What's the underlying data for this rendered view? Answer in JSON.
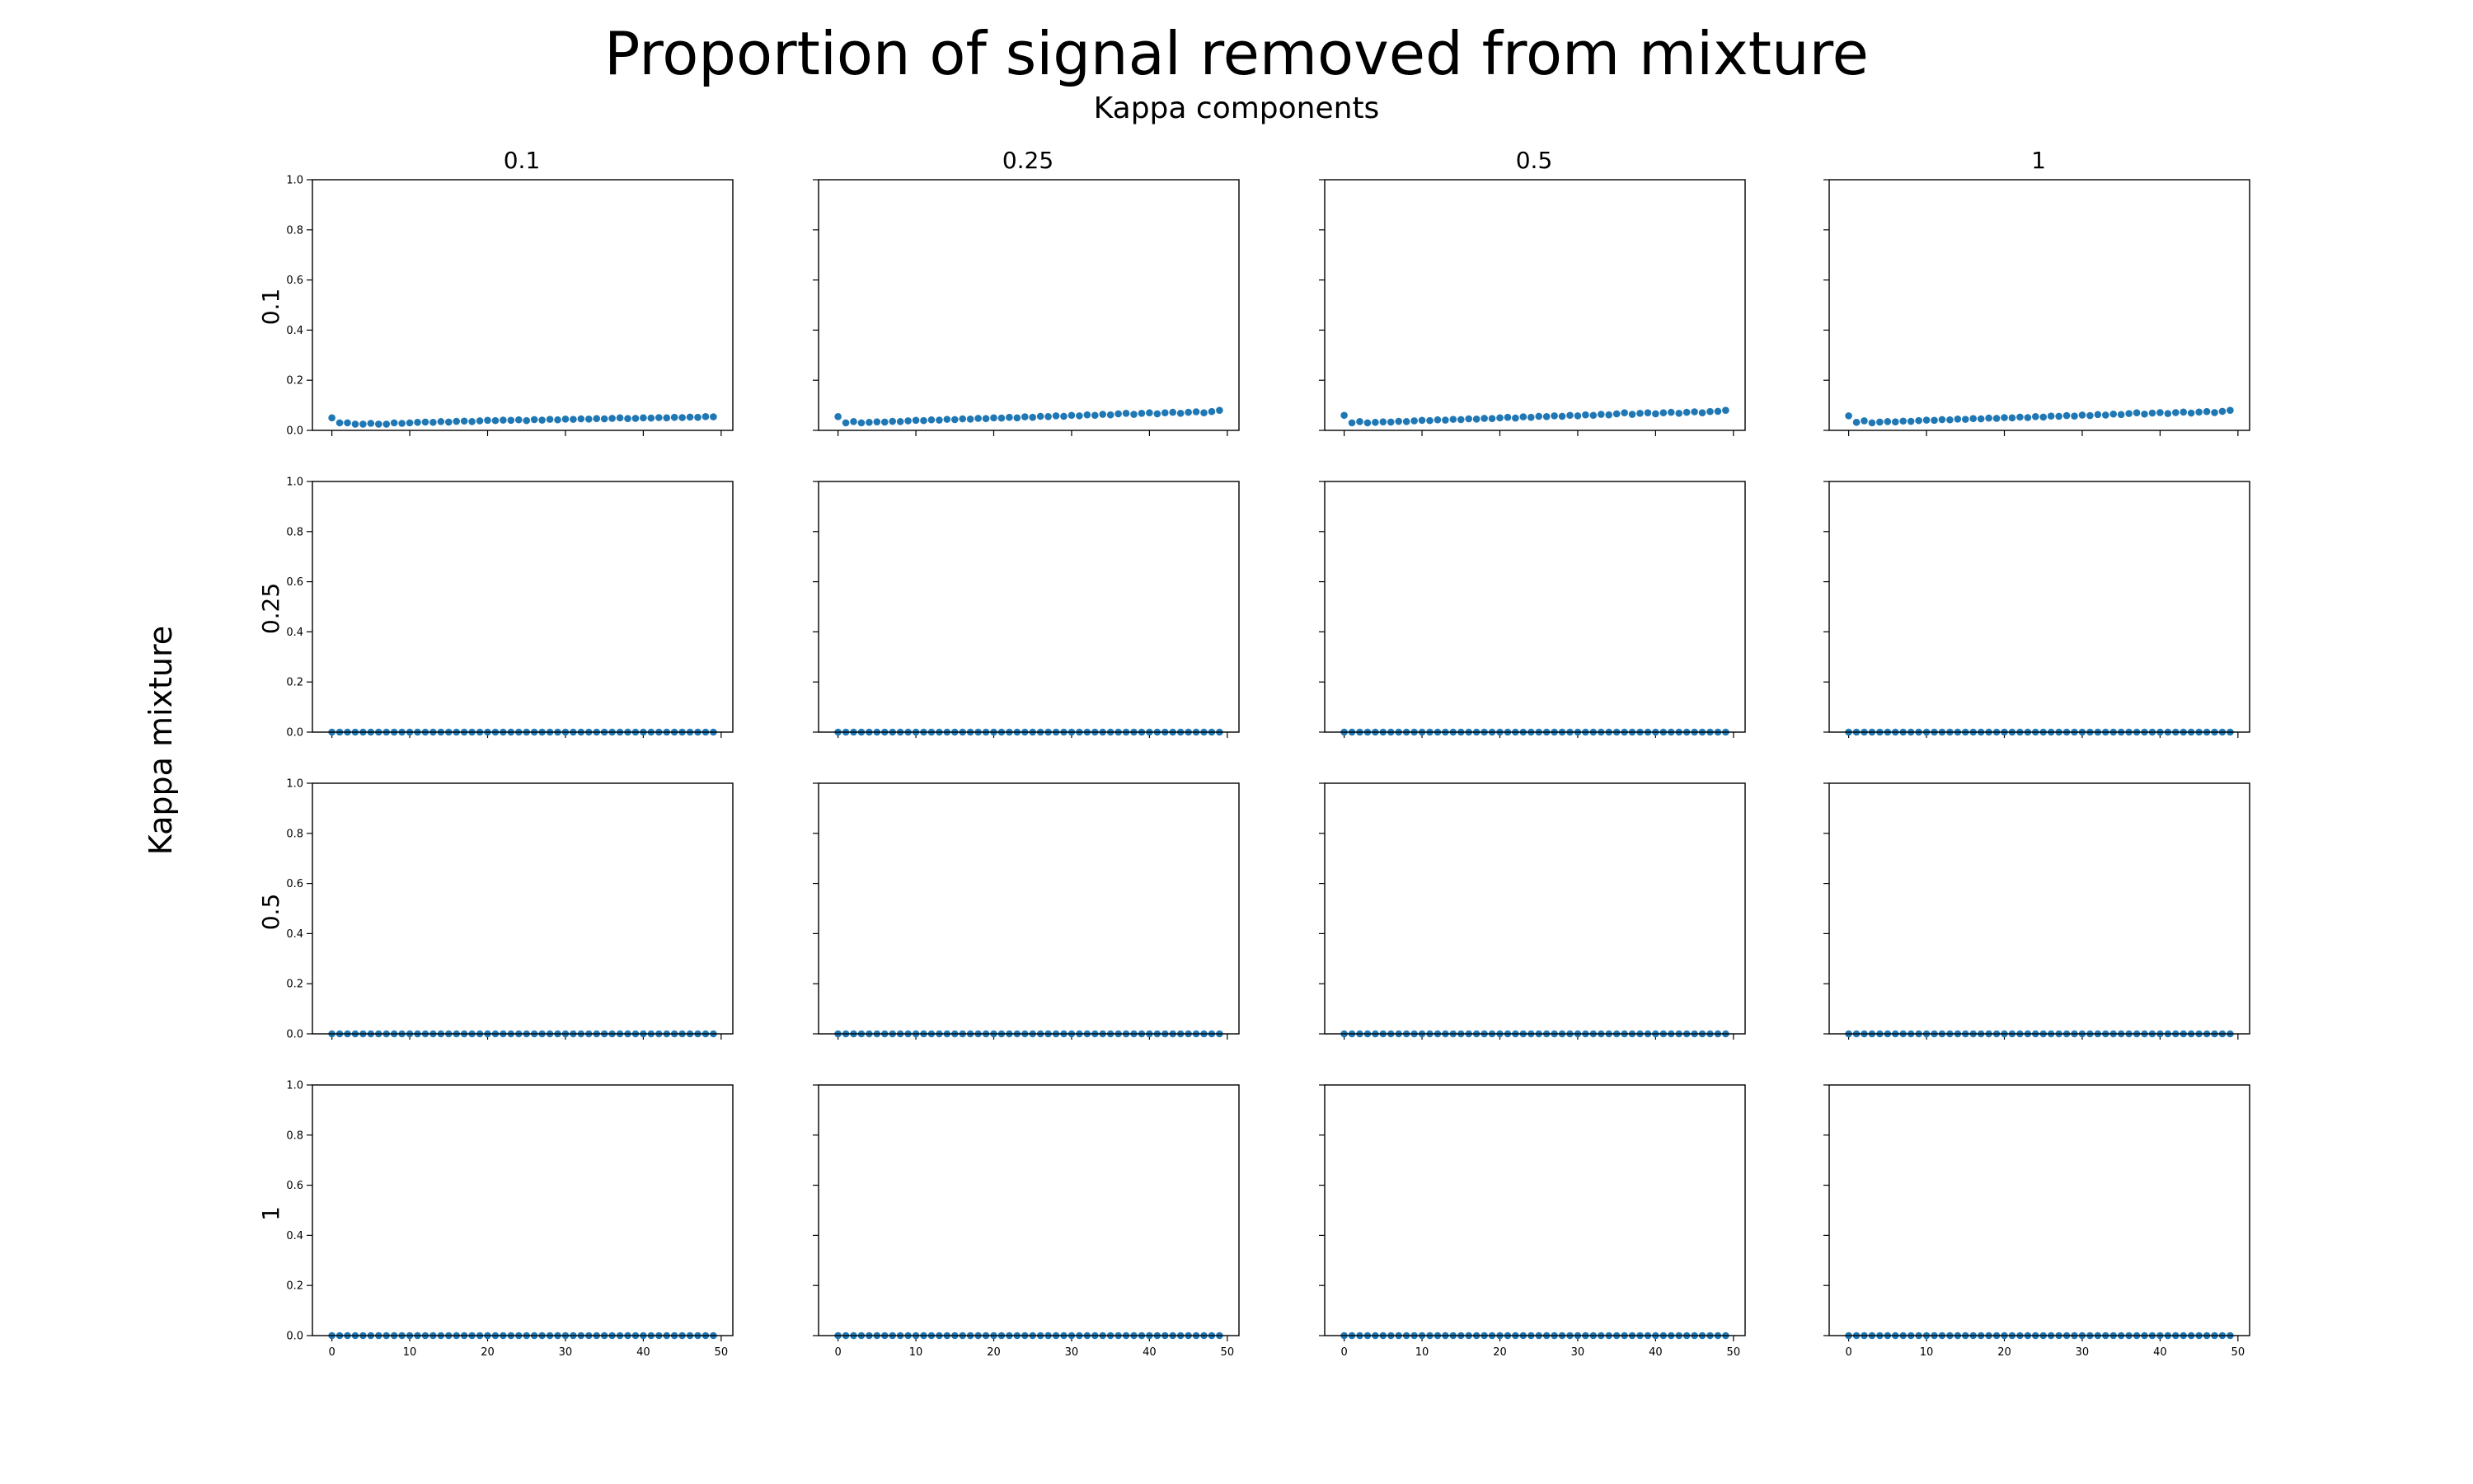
{
  "figure": {
    "title": "Proportion of signal removed from mixture",
    "subtitle": "Kappa components",
    "row_axis_label": "Kappa mixture",
    "column_labels": [
      "0.1",
      "0.25",
      "0.5",
      "1"
    ],
    "row_labels": [
      "0.1",
      "0.25",
      "0.5",
      "1"
    ],
    "marker_color": "#1f77b4"
  },
  "chart_data": {
    "type": "scatter",
    "layout": "4x4 grid of subplots",
    "title": "Proportion of signal removed from mixture",
    "subtitle": "Kappa components",
    "xlabel": "",
    "ylabel": "",
    "row_label": "Kappa mixture",
    "column_label": "Kappa components",
    "xlim": [
      -2.5,
      51.5
    ],
    "ylim": [
      0,
      1
    ],
    "x_ticks": [
      0,
      10,
      20,
      30,
      40,
      50
    ],
    "y_ticks": [
      0.0,
      0.2,
      0.4,
      0.6,
      0.8,
      1.0
    ],
    "x_tick_labels": [
      "0",
      "10",
      "20",
      "30",
      "40",
      "50"
    ],
    "y_tick_labels": [
      "0.0",
      "0.2",
      "0.4",
      "0.6",
      "0.8",
      "1.0"
    ],
    "grid": false,
    "x_tick_labels_shown_on": "bottom row only",
    "y_tick_labels_shown_on": "left column only",
    "x": [
      0,
      1,
      2,
      3,
      4,
      5,
      6,
      7,
      8,
      9,
      10,
      11,
      12,
      13,
      14,
      15,
      16,
      17,
      18,
      19,
      20,
      21,
      22,
      23,
      24,
      25,
      26,
      27,
      28,
      29,
      30,
      31,
      32,
      33,
      34,
      35,
      36,
      37,
      38,
      39,
      40,
      41,
      42,
      43,
      44,
      45,
      46,
      47,
      48,
      49
    ],
    "panels": [
      {
        "row": "0.1",
        "column": "0.1",
        "values": [
          0.05,
          0.03,
          0.03,
          0.025,
          0.025,
          0.028,
          0.025,
          0.025,
          0.03,
          0.028,
          0.03,
          0.032,
          0.033,
          0.032,
          0.035,
          0.033,
          0.036,
          0.037,
          0.035,
          0.038,
          0.04,
          0.039,
          0.041,
          0.04,
          0.042,
          0.039,
          0.043,
          0.041,
          0.044,
          0.042,
          0.045,
          0.044,
          0.046,
          0.045,
          0.047,
          0.046,
          0.048,
          0.05,
          0.047,
          0.048,
          0.05,
          0.049,
          0.051,
          0.05,
          0.052,
          0.051,
          0.053,
          0.052,
          0.055,
          0.054
        ]
      },
      {
        "row": "0.1",
        "column": "0.25",
        "values": [
          0.055,
          0.03,
          0.035,
          0.03,
          0.032,
          0.034,
          0.033,
          0.036,
          0.035,
          0.038,
          0.04,
          0.039,
          0.042,
          0.041,
          0.044,
          0.043,
          0.046,
          0.045,
          0.048,
          0.047,
          0.05,
          0.049,
          0.052,
          0.05,
          0.054,
          0.052,
          0.056,
          0.055,
          0.058,
          0.056,
          0.06,
          0.058,
          0.062,
          0.06,
          0.064,
          0.062,
          0.066,
          0.068,
          0.064,
          0.068,
          0.07,
          0.066,
          0.07,
          0.072,
          0.068,
          0.072,
          0.074,
          0.07,
          0.075,
          0.08
        ]
      },
      {
        "row": "0.1",
        "column": "0.5",
        "values": [
          0.06,
          0.03,
          0.035,
          0.03,
          0.032,
          0.034,
          0.033,
          0.036,
          0.035,
          0.038,
          0.04,
          0.039,
          0.042,
          0.041,
          0.044,
          0.043,
          0.046,
          0.045,
          0.048,
          0.047,
          0.05,
          0.052,
          0.049,
          0.054,
          0.052,
          0.056,
          0.055,
          0.058,
          0.056,
          0.06,
          0.058,
          0.062,
          0.06,
          0.064,
          0.062,
          0.066,
          0.07,
          0.064,
          0.068,
          0.07,
          0.066,
          0.07,
          0.072,
          0.068,
          0.072,
          0.074,
          0.07,
          0.075,
          0.076,
          0.08
        ]
      },
      {
        "row": "0.1",
        "column": "1",
        "values": [
          0.058,
          0.032,
          0.038,
          0.03,
          0.033,
          0.035,
          0.034,
          0.037,
          0.036,
          0.039,
          0.041,
          0.04,
          0.043,
          0.042,
          0.045,
          0.044,
          0.047,
          0.046,
          0.049,
          0.048,
          0.051,
          0.05,
          0.053,
          0.051,
          0.055,
          0.053,
          0.057,
          0.056,
          0.059,
          0.057,
          0.061,
          0.059,
          0.063,
          0.061,
          0.065,
          0.063,
          0.067,
          0.07,
          0.065,
          0.069,
          0.071,
          0.067,
          0.071,
          0.073,
          0.069,
          0.073,
          0.075,
          0.071,
          0.076,
          0.08
        ]
      },
      {
        "row": "0.25",
        "column": "0.1",
        "values": [
          0,
          0,
          0,
          0,
          0,
          0,
          0,
          0,
          0,
          0,
          0,
          0,
          0,
          0,
          0,
          0,
          0,
          0,
          0,
          0,
          0,
          0,
          0,
          0,
          0,
          0,
          0,
          0,
          0,
          0,
          0,
          0,
          0,
          0,
          0,
          0,
          0,
          0,
          0,
          0,
          0,
          0,
          0,
          0,
          0,
          0,
          0,
          0,
          0,
          0
        ]
      },
      {
        "row": "0.25",
        "column": "0.25",
        "values": [
          0,
          0,
          0,
          0,
          0,
          0,
          0,
          0,
          0,
          0,
          0,
          0,
          0,
          0,
          0,
          0,
          0,
          0,
          0,
          0,
          0,
          0,
          0,
          0,
          0,
          0,
          0,
          0,
          0,
          0,
          0,
          0,
          0,
          0,
          0,
          0,
          0,
          0,
          0,
          0,
          0,
          0,
          0,
          0,
          0,
          0,
          0,
          0,
          0,
          0
        ]
      },
      {
        "row": "0.25",
        "column": "0.5",
        "values": [
          0,
          0,
          0,
          0,
          0,
          0,
          0,
          0,
          0,
          0,
          0,
          0,
          0,
          0,
          0,
          0,
          0,
          0,
          0,
          0,
          0,
          0,
          0,
          0,
          0,
          0,
          0,
          0,
          0,
          0,
          0,
          0,
          0,
          0,
          0,
          0,
          0,
          0,
          0,
          0,
          0,
          0,
          0,
          0,
          0,
          0,
          0,
          0,
          0,
          0
        ]
      },
      {
        "row": "0.25",
        "column": "1",
        "values": [
          0,
          0,
          0,
          0,
          0,
          0,
          0,
          0,
          0,
          0,
          0,
          0,
          0,
          0,
          0,
          0,
          0,
          0,
          0,
          0,
          0,
          0,
          0,
          0,
          0,
          0,
          0,
          0,
          0,
          0,
          0,
          0,
          0,
          0,
          0,
          0,
          0,
          0,
          0,
          0,
          0,
          0,
          0,
          0,
          0,
          0,
          0,
          0,
          0,
          0
        ]
      },
      {
        "row": "0.5",
        "column": "0.1",
        "values": [
          0,
          0,
          0,
          0,
          0,
          0,
          0,
          0,
          0,
          0,
          0,
          0,
          0,
          0,
          0,
          0,
          0,
          0,
          0,
          0,
          0,
          0,
          0,
          0,
          0,
          0,
          0,
          0,
          0,
          0,
          0,
          0,
          0,
          0,
          0,
          0,
          0,
          0,
          0,
          0,
          0,
          0,
          0,
          0,
          0,
          0,
          0,
          0,
          0,
          0
        ]
      },
      {
        "row": "0.5",
        "column": "0.25",
        "values": [
          0,
          0,
          0,
          0,
          0,
          0,
          0,
          0,
          0,
          0,
          0,
          0,
          0,
          0,
          0,
          0,
          0,
          0,
          0,
          0,
          0,
          0,
          0,
          0,
          0,
          0,
          0,
          0,
          0,
          0,
          0,
          0,
          0,
          0,
          0,
          0,
          0,
          0,
          0,
          0,
          0,
          0,
          0,
          0,
          0,
          0,
          0,
          0,
          0,
          0
        ]
      },
      {
        "row": "0.5",
        "column": "0.5",
        "values": [
          0,
          0,
          0,
          0,
          0,
          0,
          0,
          0,
          0,
          0,
          0,
          0,
          0,
          0,
          0,
          0,
          0,
          0,
          0,
          0,
          0,
          0,
          0,
          0,
          0,
          0,
          0,
          0,
          0,
          0,
          0,
          0,
          0,
          0,
          0,
          0,
          0,
          0,
          0,
          0,
          0,
          0,
          0,
          0,
          0,
          0,
          0,
          0,
          0,
          0
        ]
      },
      {
        "row": "0.5",
        "column": "1",
        "values": [
          0,
          0,
          0,
          0,
          0,
          0,
          0,
          0,
          0,
          0,
          0,
          0,
          0,
          0,
          0,
          0,
          0,
          0,
          0,
          0,
          0,
          0,
          0,
          0,
          0,
          0,
          0,
          0,
          0,
          0,
          0,
          0,
          0,
          0,
          0,
          0,
          0,
          0,
          0,
          0,
          0,
          0,
          0,
          0,
          0,
          0,
          0,
          0,
          0,
          0
        ]
      },
      {
        "row": "1",
        "column": "0.1",
        "values": [
          0,
          0,
          0,
          0,
          0,
          0,
          0,
          0,
          0,
          0,
          0,
          0,
          0,
          0,
          0,
          0,
          0,
          0,
          0,
          0,
          0,
          0,
          0,
          0,
          0,
          0,
          0,
          0,
          0,
          0,
          0,
          0,
          0,
          0,
          0,
          0,
          0,
          0,
          0,
          0,
          0,
          0,
          0,
          0,
          0,
          0,
          0,
          0,
          0,
          0
        ]
      },
      {
        "row": "1",
        "column": "0.25",
        "values": [
          0,
          0,
          0,
          0,
          0,
          0,
          0,
          0,
          0,
          0,
          0,
          0,
          0,
          0,
          0,
          0,
          0,
          0,
          0,
          0,
          0,
          0,
          0,
          0,
          0,
          0,
          0,
          0,
          0,
          0,
          0,
          0,
          0,
          0,
          0,
          0,
          0,
          0,
          0,
          0,
          0,
          0,
          0,
          0,
          0,
          0,
          0,
          0,
          0,
          0
        ]
      },
      {
        "row": "1",
        "column": "0.5",
        "values": [
          0,
          0,
          0,
          0,
          0,
          0,
          0,
          0,
          0,
          0,
          0,
          0,
          0,
          0,
          0,
          0,
          0,
          0,
          0,
          0,
          0,
          0,
          0,
          0,
          0,
          0,
          0,
          0,
          0,
          0,
          0,
          0,
          0,
          0,
          0,
          0,
          0,
          0,
          0,
          0,
          0,
          0,
          0,
          0,
          0,
          0,
          0,
          0,
          0,
          0
        ]
      },
      {
        "row": "1",
        "column": "1",
        "values": [
          0,
          0,
          0,
          0,
          0,
          0,
          0,
          0,
          0,
          0,
          0,
          0,
          0,
          0,
          0,
          0,
          0,
          0,
          0,
          0,
          0,
          0,
          0,
          0,
          0,
          0,
          0,
          0,
          0,
          0,
          0,
          0,
          0,
          0,
          0,
          0,
          0,
          0,
          0,
          0,
          0,
          0,
          0,
          0,
          0,
          0,
          0,
          0,
          0,
          0
        ]
      }
    ]
  }
}
